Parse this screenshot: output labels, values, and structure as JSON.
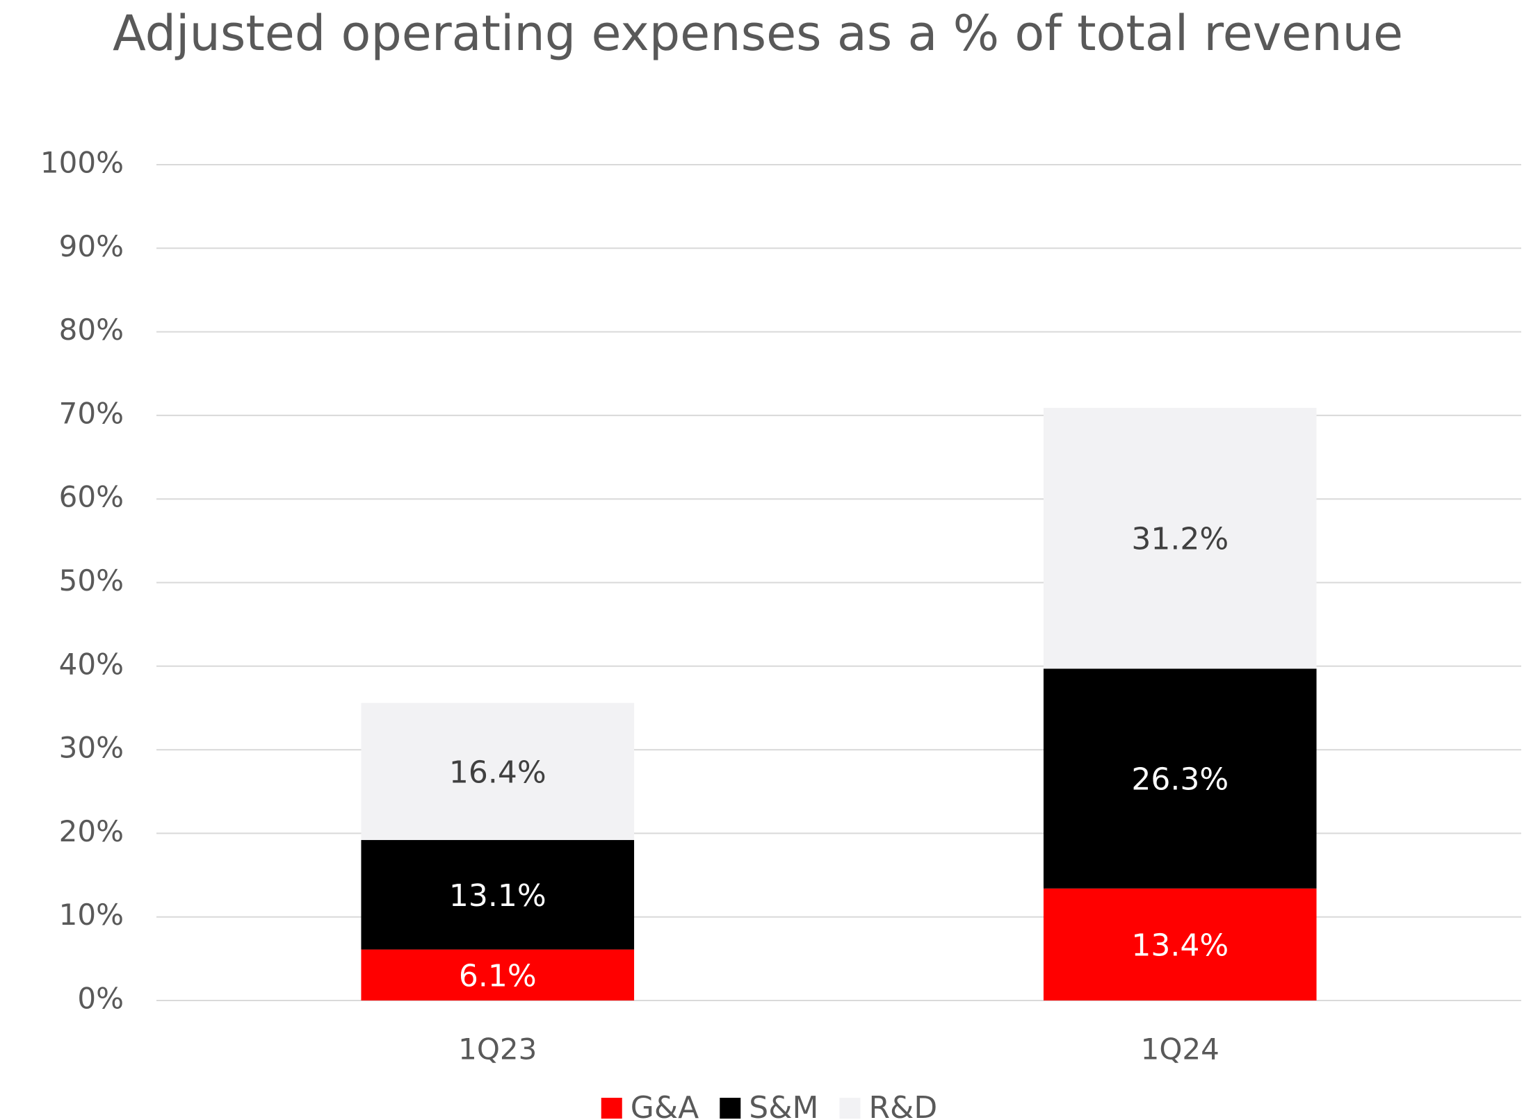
{
  "chart_data": {
    "type": "stacked_bar",
    "title": "Adjusted operating expenses as a % of total revenue",
    "categories": [
      "1Q23",
      "1Q24"
    ],
    "series": [
      {
        "name": "G&A",
        "color": "#ff0000",
        "values": [
          6.1,
          13.4
        ],
        "value_labels": [
          "6.1%",
          "13.4%"
        ]
      },
      {
        "name": "S&M",
        "color": "#000000",
        "values": [
          13.1,
          26.3
        ],
        "value_labels": [
          "13.1%",
          "26.3%"
        ]
      },
      {
        "name": "R&D",
        "color": "#f2f2f4",
        "values": [
          16.4,
          31.2
        ],
        "value_labels": [
          "16.4%",
          "31.2%"
        ]
      }
    ],
    "ylim": [
      0,
      100
    ],
    "yticks": [
      {
        "value": 0,
        "label": "0%"
      },
      {
        "value": 10,
        "label": "10%"
      },
      {
        "value": 20,
        "label": "20%"
      },
      {
        "value": 30,
        "label": "30%"
      },
      {
        "value": 40,
        "label": "40%"
      },
      {
        "value": 50,
        "label": "50%"
      },
      {
        "value": 60,
        "label": "60%"
      },
      {
        "value": 70,
        "label": "70%"
      },
      {
        "value": 80,
        "label": "80%"
      },
      {
        "value": 90,
        "label": "90%"
      },
      {
        "value": 100,
        "label": "100%"
      }
    ],
    "grid": true,
    "legend": "bottom"
  }
}
